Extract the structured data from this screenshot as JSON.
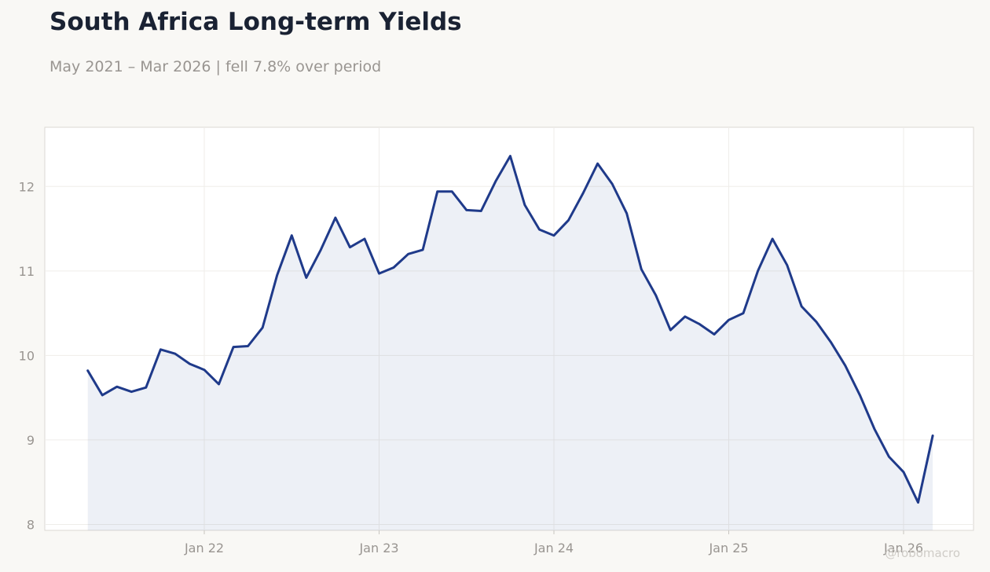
{
  "header": {
    "title": "South Africa Long-term Yields",
    "subtitle": "May 2021 – Mar 2026 | fell 7.8% over period"
  },
  "watermark": "@robomacro",
  "colors": {
    "line": "#1f3a8a",
    "fill": "#1f3a8a",
    "background": "#f9f8f5",
    "plot_background": "#ffffff"
  },
  "chart_data": {
    "type": "area",
    "title": "South Africa Long-term Yields",
    "xlabel": "",
    "ylabel": "",
    "ylim": [
      7.93,
      12.7
    ],
    "grid": true,
    "legend": "none",
    "y_ticks": [
      8,
      9,
      10,
      11,
      12
    ],
    "x_ticks": [
      {
        "label": "Jan 22",
        "date": "2022-01"
      },
      {
        "label": "Jan 23",
        "date": "2023-01"
      },
      {
        "label": "Jan 24",
        "date": "2024-01"
      },
      {
        "label": "Jan 25",
        "date": "2025-01"
      },
      {
        "label": "Jan 26",
        "date": "2026-01"
      }
    ],
    "series": [
      {
        "dates": [
          "2021-05",
          "2021-06",
          "2021-07",
          "2021-08",
          "2021-09",
          "2021-10",
          "2021-11",
          "2021-12",
          "2022-01",
          "2022-02",
          "2022-03",
          "2022-04",
          "2022-05",
          "2022-06",
          "2022-07",
          "2022-08",
          "2022-09",
          "2022-10",
          "2022-11",
          "2022-12",
          "2023-01",
          "2023-02",
          "2023-03",
          "2023-04",
          "2023-05",
          "2023-06",
          "2023-07",
          "2023-08",
          "2023-09",
          "2023-10",
          "2023-11",
          "2023-12",
          "2024-01",
          "2024-02",
          "2024-03",
          "2024-04",
          "2024-05",
          "2024-06",
          "2024-07",
          "2024-08",
          "2024-09",
          "2024-10",
          "2024-11",
          "2024-12",
          "2025-01",
          "2025-02",
          "2025-03",
          "2025-04",
          "2025-05",
          "2025-06",
          "2025-07",
          "2025-08",
          "2025-09",
          "2025-10",
          "2025-11",
          "2025-12",
          "2026-01",
          "2026-02",
          "2026-03"
        ],
        "values": [
          9.82,
          9.53,
          9.63,
          9.57,
          9.62,
          10.07,
          10.02,
          9.9,
          9.83,
          9.66,
          10.1,
          10.11,
          10.33,
          10.95,
          11.42,
          10.92,
          11.25,
          11.63,
          11.28,
          11.38,
          10.97,
          11.04,
          11.2,
          11.25,
          11.94,
          11.94,
          11.72,
          11.71,
          12.06,
          12.36,
          11.78,
          11.49,
          11.42,
          11.6,
          11.92,
          12.27,
          12.03,
          11.68,
          11.02,
          10.71,
          10.3,
          10.46,
          10.37,
          10.25,
          10.42,
          10.5,
          11.0,
          11.38,
          11.07,
          10.58,
          10.4,
          10.16,
          9.88,
          9.53,
          9.13,
          8.8,
          8.62,
          8.26,
          9.05
        ]
      }
    ]
  }
}
